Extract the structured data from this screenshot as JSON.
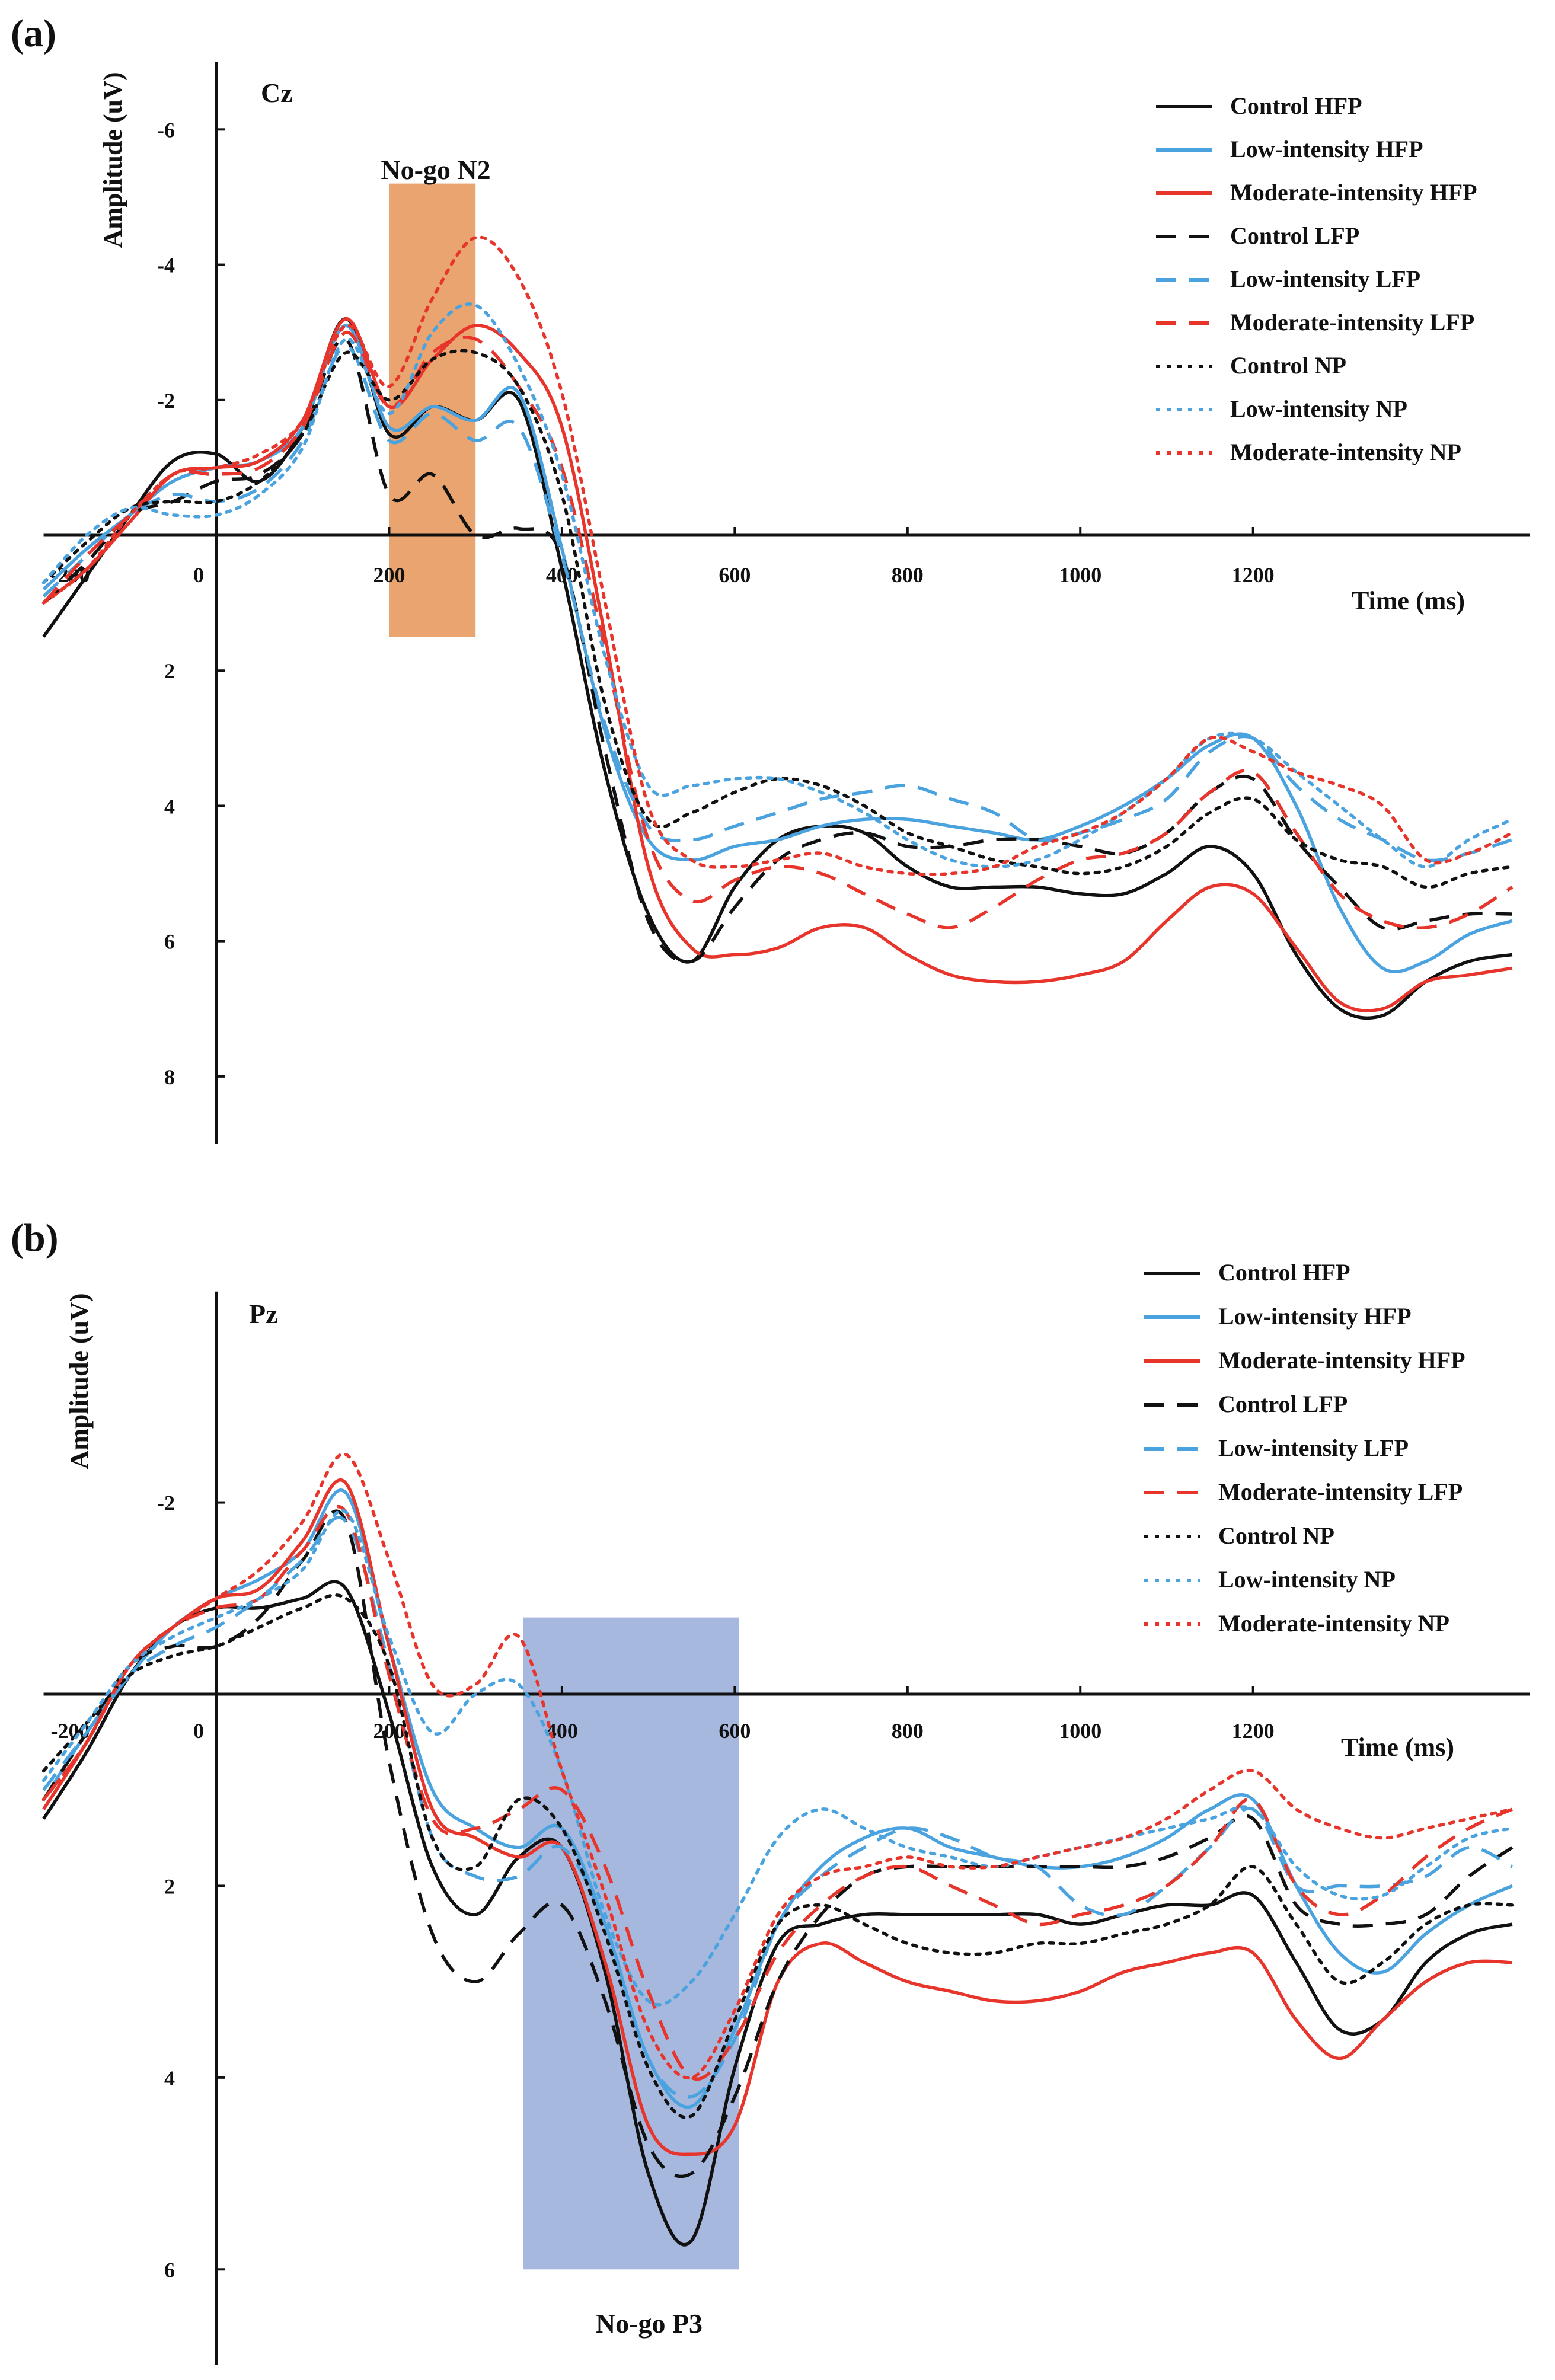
{
  "figure": {
    "panels": [
      "(a)",
      "(b)"
    ]
  },
  "legend_labels": [
    "Control HFP",
    "Low-intensity HFP",
    "Moderate-intensity HFP",
    "Control LFP",
    "Low-intensity LFP",
    "Moderate-intensity LFP",
    "Control NP",
    "Low-intensity NP",
    "Moderate-intensity NP"
  ],
  "series_style": {
    "colors": {
      "Control": "#111111",
      "Low-intensity": "#4aa3df",
      "Moderate-intensity": "#e8352c"
    },
    "dash": {
      "HFP": "solid",
      "LFP": "dashed",
      "NP": "dotted"
    }
  },
  "chart_data": [
    {
      "type": "line",
      "panel_label": "(a)",
      "electrode": "Cz",
      "ylabel": "Amplitude (uV)",
      "xlabel": "Time (ms)",
      "xlim": [
        -200,
        1520
      ],
      "ylim": [
        -7,
        9
      ],
      "y_inverted": true,
      "xticks": [
        -200,
        0,
        200,
        400,
        600,
        800,
        1000,
        1200
      ],
      "yticks": [
        -6,
        -4,
        -2,
        2,
        4,
        6,
        8
      ],
      "highlight": {
        "label": "No-go N2",
        "x_range": [
          200,
          300
        ],
        "y_range": [
          -5.2,
          1.5
        ],
        "color": "#e9a46f"
      },
      "x": [
        -200,
        -150,
        -100,
        -50,
        0,
        50,
        100,
        150,
        200,
        250,
        300,
        350,
        400,
        450,
        500,
        550,
        600,
        650,
        700,
        750,
        800,
        850,
        900,
        950,
        1000,
        1050,
        1100,
        1150,
        1200,
        1250,
        1300,
        1350,
        1400,
        1450,
        1500
      ],
      "series": [
        {
          "name": "Control HFP",
          "values": [
            1.5,
            0.6,
            -0.3,
            -1.1,
            -1.2,
            -0.8,
            -1.6,
            -3.2,
            -1.5,
            -1.9,
            -1.7,
            -2.0,
            0.5,
            3.5,
            5.6,
            6.3,
            5.2,
            4.5,
            4.3,
            4.4,
            4.9,
            5.2,
            5.2,
            5.2,
            5.3,
            5.3,
            5.0,
            4.6,
            5.0,
            6.2,
            7.0,
            7.1,
            6.6,
            6.3,
            6.2
          ]
        },
        {
          "name": "Low-intensity HFP",
          "values": [
            0.8,
            0.2,
            -0.3,
            -0.8,
            -1.0,
            -1.1,
            -1.6,
            -3.1,
            -1.6,
            -1.9,
            -1.7,
            -2.1,
            0.2,
            2.9,
            4.5,
            4.8,
            4.6,
            4.5,
            4.3,
            4.2,
            4.2,
            4.3,
            4.4,
            4.5,
            4.3,
            4.0,
            3.6,
            3.1,
            3.0,
            4.0,
            5.5,
            6.4,
            6.3,
            5.9,
            5.7
          ]
        },
        {
          "name": "Moderate-intensity HFP",
          "values": [
            1.0,
            0.5,
            -0.2,
            -0.9,
            -1.0,
            -1.1,
            -1.7,
            -3.2,
            -1.9,
            -2.6,
            -3.1,
            -2.7,
            -1.6,
            1.5,
            4.9,
            6.1,
            6.2,
            6.1,
            5.8,
            5.8,
            6.2,
            6.5,
            6.6,
            6.6,
            6.5,
            6.3,
            5.7,
            5.2,
            5.3,
            6.1,
            6.9,
            7.0,
            6.6,
            6.5,
            6.4
          ]
        },
        {
          "name": "Control LFP",
          "values": [
            1.0,
            0.4,
            -0.3,
            -0.5,
            -0.8,
            -0.9,
            -1.5,
            -2.9,
            -0.6,
            -0.9,
            0.0,
            -0.1,
            0.3,
            3.2,
            5.7,
            6.3,
            5.5,
            4.8,
            4.5,
            4.4,
            4.6,
            4.6,
            4.5,
            4.5,
            4.6,
            4.7,
            4.4,
            3.8,
            3.6,
            4.5,
            5.2,
            5.8,
            5.7,
            5.6,
            5.6
          ]
        },
        {
          "name": "Low-intensity LFP",
          "values": [
            0.9,
            0.3,
            -0.3,
            -0.6,
            -0.5,
            -0.7,
            -1.4,
            -2.8,
            -1.4,
            -1.8,
            -1.4,
            -1.6,
            0.3,
            2.8,
            4.3,
            4.5,
            4.3,
            4.1,
            3.9,
            3.8,
            3.7,
            3.9,
            4.1,
            4.5,
            4.4,
            4.2,
            3.9,
            3.2,
            3.0,
            3.7,
            4.2,
            4.5,
            4.8,
            4.7,
            4.5
          ]
        },
        {
          "name": "Moderate-intensity LFP",
          "values": [
            1.0,
            0.3,
            -0.3,
            -0.9,
            -0.9,
            -1.0,
            -1.6,
            -3.0,
            -1.9,
            -2.7,
            -2.9,
            -2.2,
            -1.0,
            1.7,
            4.5,
            5.4,
            5.1,
            4.9,
            5.0,
            5.3,
            5.6,
            5.8,
            5.5,
            5.1,
            4.8,
            4.7,
            4.4,
            3.8,
            3.5,
            4.4,
            5.3,
            5.7,
            5.8,
            5.6,
            5.2
          ]
        },
        {
          "name": "Control NP",
          "values": [
            0.7,
            0.1,
            -0.4,
            -0.5,
            -0.5,
            -0.8,
            -1.5,
            -2.7,
            -2.0,
            -2.6,
            -2.7,
            -2.2,
            -0.6,
            2.5,
            4.2,
            4.1,
            3.8,
            3.6,
            3.7,
            4.0,
            4.4,
            4.6,
            4.8,
            4.9,
            5.0,
            4.9,
            4.6,
            4.1,
            3.9,
            4.5,
            4.8,
            4.9,
            5.2,
            5.0,
            4.9
          ]
        },
        {
          "name": "Low-intensity NP",
          "values": [
            0.7,
            0.0,
            -0.4,
            -0.3,
            -0.3,
            -0.6,
            -1.3,
            -2.9,
            -1.8,
            -3.0,
            -3.4,
            -2.5,
            -0.9,
            1.8,
            3.7,
            3.7,
            3.6,
            3.6,
            3.8,
            4.1,
            4.5,
            4.8,
            4.9,
            4.8,
            4.5,
            4.1,
            3.6,
            3.0,
            3.0,
            3.5,
            4.0,
            4.5,
            4.9,
            4.5,
            4.2
          ]
        },
        {
          "name": "Moderate-intensity NP",
          "values": [
            1.0,
            0.5,
            -0.3,
            -0.9,
            -1.0,
            -1.2,
            -1.7,
            -3.1,
            -2.2,
            -3.5,
            -4.4,
            -3.8,
            -2.1,
            1.0,
            4.0,
            4.8,
            4.9,
            4.8,
            4.7,
            4.9,
            5.0,
            5.0,
            4.9,
            4.6,
            4.4,
            4.1,
            3.6,
            3.0,
            3.2,
            3.5,
            3.7,
            4.0,
            4.8,
            4.7,
            4.4
          ]
        }
      ]
    },
    {
      "type": "line",
      "panel_label": "(b)",
      "electrode": "Pz",
      "ylabel": "Amplitude (uV)",
      "xlabel": "Time (ms)",
      "xlim": [
        -200,
        1520
      ],
      "ylim": [
        -4.2,
        7
      ],
      "y_inverted": true,
      "xticks": [
        -200,
        0,
        200,
        400,
        600,
        800,
        1000,
        1200
      ],
      "yticks": [
        -2,
        2,
        4,
        6
      ],
      "highlight": {
        "label": "No-go P3",
        "x_range": [
          355,
          605
        ],
        "y_range": [
          -0.8,
          6.0
        ],
        "color": "#a7b8df"
      },
      "x": [
        -200,
        -150,
        -100,
        -50,
        0,
        50,
        100,
        150,
        200,
        250,
        300,
        350,
        400,
        450,
        500,
        550,
        600,
        650,
        700,
        750,
        800,
        850,
        900,
        950,
        1000,
        1050,
        1100,
        1150,
        1200,
        1250,
        1300,
        1350,
        1400,
        1450,
        1500
      ],
      "series": [
        {
          "name": "Control HFP",
          "values": [
            1.3,
            0.6,
            -0.2,
            -0.7,
            -0.9,
            -0.9,
            -1.0,
            -1.1,
            0.2,
            1.8,
            2.3,
            1.7,
            1.6,
            2.9,
            5.0,
            5.7,
            3.9,
            2.6,
            2.4,
            2.3,
            2.3,
            2.3,
            2.3,
            2.3,
            2.4,
            2.3,
            2.2,
            2.2,
            2.1,
            2.8,
            3.5,
            3.4,
            2.8,
            2.5,
            2.4
          ]
        },
        {
          "name": "Low-intensity HFP",
          "values": [
            1.1,
            0.4,
            -0.2,
            -0.7,
            -1.0,
            -1.2,
            -1.5,
            -2.1,
            -0.5,
            1.0,
            1.4,
            1.6,
            1.4,
            2.4,
            3.8,
            4.3,
            3.5,
            2.4,
            1.8,
            1.5,
            1.4,
            1.6,
            1.7,
            1.8,
            1.8,
            1.7,
            1.5,
            1.2,
            1.1,
            2.0,
            2.7,
            2.9,
            2.5,
            2.2,
            2.0
          ]
        },
        {
          "name": "Moderate-intensity HFP",
          "values": [
            1.2,
            0.5,
            -0.3,
            -0.7,
            -1.0,
            -1.1,
            -1.6,
            -2.2,
            -0.5,
            1.2,
            1.5,
            1.7,
            1.6,
            2.8,
            4.5,
            4.8,
            4.5,
            3.0,
            2.6,
            2.8,
            3.0,
            3.1,
            3.2,
            3.2,
            3.1,
            2.9,
            2.8,
            2.7,
            2.7,
            3.4,
            3.8,
            3.4,
            3.0,
            2.8,
            2.8
          ]
        },
        {
          "name": "Control LFP",
          "values": [
            1.1,
            0.4,
            -0.3,
            -0.5,
            -0.5,
            -0.8,
            -1.4,
            -1.8,
            0.7,
            2.5,
            3.0,
            2.5,
            2.2,
            3.2,
            4.7,
            5.0,
            4.2,
            3.0,
            2.3,
            1.9,
            1.8,
            1.8,
            1.8,
            1.8,
            1.8,
            1.8,
            1.7,
            1.5,
            1.3,
            2.2,
            2.4,
            2.4,
            2.3,
            1.9,
            1.6
          ]
        },
        {
          "name": "Low-intensity LFP",
          "values": [
            1.0,
            0.4,
            -0.2,
            -0.5,
            -0.7,
            -1.0,
            -1.4,
            -1.8,
            -0.3,
            1.5,
            1.9,
            1.9,
            1.6,
            2.4,
            3.8,
            4.2,
            3.6,
            2.4,
            1.9,
            1.6,
            1.4,
            1.5,
            1.7,
            1.8,
            2.2,
            2.3,
            2.0,
            1.6,
            1.2,
            2.0,
            2.0,
            2.0,
            1.9,
            1.6,
            1.8
          ]
        },
        {
          "name": "Moderate-intensity LFP",
          "values": [
            1.1,
            0.5,
            -0.3,
            -0.7,
            -0.9,
            -1.0,
            -1.5,
            -1.9,
            -0.2,
            1.3,
            1.4,
            1.2,
            1.0,
            1.8,
            3.1,
            4.0,
            3.6,
            2.7,
            2.2,
            1.9,
            1.8,
            2.0,
            2.2,
            2.4,
            2.3,
            2.2,
            2.0,
            1.6,
            1.1,
            2.0,
            2.3,
            2.1,
            1.7,
            1.4,
            1.2
          ]
        },
        {
          "name": "Control NP",
          "values": [
            0.8,
            0.3,
            -0.2,
            -0.4,
            -0.5,
            -0.7,
            -0.9,
            -1.0,
            -0.3,
            1.5,
            1.8,
            1.1,
            1.4,
            2.5,
            3.9,
            4.4,
            3.4,
            2.4,
            2.2,
            2.4,
            2.6,
            2.7,
            2.7,
            2.6,
            2.6,
            2.5,
            2.4,
            2.2,
            1.8,
            2.4,
            3.0,
            2.8,
            2.4,
            2.2,
            2.2
          ]
        },
        {
          "name": "Low-intensity NP",
          "values": [
            0.9,
            0.3,
            -0.3,
            -0.6,
            -0.8,
            -1.0,
            -1.3,
            -1.9,
            -0.6,
            0.4,
            0.0,
            -0.1,
            0.8,
            2.3,
            3.2,
            3.0,
            2.3,
            1.5,
            1.2,
            1.4,
            1.6,
            1.7,
            1.8,
            1.7,
            1.6,
            1.5,
            1.4,
            1.3,
            1.2,
            1.8,
            2.1,
            2.1,
            1.8,
            1.5,
            1.4
          ]
        },
        {
          "name": "Moderate-intensity NP",
          "values": [
            1.1,
            0.5,
            -0.3,
            -0.7,
            -1.0,
            -1.3,
            -1.8,
            -2.5,
            -1.4,
            -0.1,
            -0.1,
            -0.6,
            0.8,
            2.1,
            3.5,
            4.0,
            3.3,
            2.3,
            1.9,
            1.8,
            1.7,
            1.8,
            1.8,
            1.7,
            1.6,
            1.5,
            1.3,
            1.0,
            0.8,
            1.2,
            1.4,
            1.5,
            1.4,
            1.3,
            1.2
          ]
        }
      ]
    }
  ]
}
